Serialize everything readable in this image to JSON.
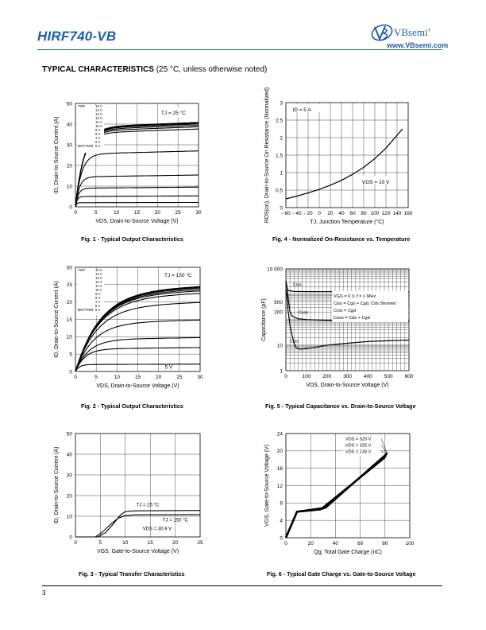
{
  "header": {
    "part_number": "HIRF740-VB",
    "brand": "VBsemi",
    "url": "www.VBsemi.com",
    "registered": "®",
    "accent_color": "#1f5fa8"
  },
  "section": {
    "title_bold": "TYPICAL CHARACTERISTICS",
    "title_rest": " (25 °C, unless otherwise noted)"
  },
  "footer": {
    "page_number": "3"
  },
  "chart_data": [
    {
      "id": "fig1",
      "type": "line",
      "caption": "Fig. 1 - Typical Output Characteristics",
      "xlabel": "VDS, Drain-to-Source Voltage (V)",
      "ylabel": "ID, Drain-to-Source Current (A)",
      "xlim": [
        0,
        30
      ],
      "ylim": [
        0,
        50
      ],
      "xticks": [
        0,
        5,
        10,
        15,
        20,
        25,
        30
      ],
      "yticks": [
        0,
        10,
        20,
        30,
        40,
        50
      ],
      "grid": true,
      "legend_title_top": "TOP",
      "legend_title_bottom": "BOTTOM",
      "legend": [
        "15 V",
        "14 V",
        "13 V",
        "12 V",
        "11 V",
        "10 V",
        "9 V",
        "8 V",
        "7 V",
        "6 V",
        "5 V"
      ],
      "annotation": "TJ = 25 °C",
      "series": [
        {
          "name": "15 V",
          "sat": 38.5,
          "knee": 4.8
        },
        {
          "name": "14 V",
          "sat": 38.2,
          "knee": 4.7
        },
        {
          "name": "13 V",
          "sat": 37.8,
          "knee": 4.6
        },
        {
          "name": "12 V",
          "sat": 37.2,
          "knee": 4.5
        },
        {
          "name": "11 V",
          "sat": 36.5,
          "knee": 4.4
        },
        {
          "name": "10 V",
          "sat": 35.5,
          "knee": 4.2
        },
        {
          "name": "9 V",
          "sat": 25.5,
          "knee": 3.2
        },
        {
          "name": "8 V",
          "sat": 14.5,
          "knee": 2.1
        },
        {
          "name": "7 V",
          "sat": 9.0,
          "knee": 1.5
        },
        {
          "name": "6 V",
          "sat": 5.0,
          "knee": 0.9
        },
        {
          "name": "5 V",
          "sat": 2.0,
          "knee": 0.5
        }
      ]
    },
    {
      "id": "fig2",
      "type": "line",
      "caption": "Fig. 2 - Typical Output Characteristics",
      "xlabel": "VDS, Drain-to-Source Voltage (V)",
      "ylabel": "ID, Drain-to-Source Current (A)",
      "xlim": [
        0,
        30
      ],
      "ylim": [
        0,
        30
      ],
      "xticks": [
        0,
        5,
        10,
        15,
        20,
        25,
        30
      ],
      "yticks": [
        0,
        5,
        10,
        15,
        20,
        25,
        30
      ],
      "grid": true,
      "legend_title_top": "TOP",
      "legend_title_bottom": "BOTTOM",
      "legend": [
        "15 V",
        "14 V",
        "13 V",
        "12 V",
        "11 V",
        "10 V",
        "9 V",
        "8 V",
        "7 V",
        "6 V",
        "5 V"
      ],
      "annotation": "TJ = 150 °C",
      "curve_label": "5 V",
      "series": [
        {
          "name": "15 V",
          "sat": 23.2,
          "knee": 13
        },
        {
          "name": "14 V",
          "sat": 23.0,
          "knee": 13
        },
        {
          "name": "13 V",
          "sat": 22.8,
          "knee": 13
        },
        {
          "name": "12 V",
          "sat": 22.4,
          "knee": 12.8
        },
        {
          "name": "11 V",
          "sat": 22.0,
          "knee": 12.6
        },
        {
          "name": "10 V",
          "sat": 21.3,
          "knee": 12.4
        },
        {
          "name": "9 V",
          "sat": 18.8,
          "knee": 11.5
        },
        {
          "name": "8 V",
          "sat": 14.0,
          "knee": 9.5
        },
        {
          "name": "7 V",
          "sat": 9.2,
          "knee": 7.0
        },
        {
          "name": "6 V",
          "sat": 6.5,
          "knee": 5.0
        },
        {
          "name": "5 V",
          "sat": 2.0,
          "knee": 2.0
        }
      ]
    },
    {
      "id": "fig3",
      "type": "line",
      "caption": "Fig. 3 - Typical Transfer Characteristics",
      "xlabel": "VGS, Gate-to-Source Voltage (V)",
      "ylabel": "ID, Drain-to-Source Current (A)",
      "xlim": [
        0,
        25
      ],
      "ylim": [
        0,
        50
      ],
      "xticks": [
        0,
        5,
        10,
        15,
        20,
        25
      ],
      "yticks": [
        0,
        10,
        20,
        30,
        40,
        50
      ],
      "grid": true,
      "annotations": [
        "TJ = 25 °C",
        "TJ = 150 °C",
        "VDS = 30.9 V"
      ],
      "series": [
        {
          "name": "TJ = 25 °C",
          "x": [
            0,
            4.5,
            6.0,
            7.5,
            9.0,
            10.0,
            12.0,
            25.0
          ],
          "y": [
            0,
            0,
            2.0,
            6.0,
            10.5,
            12.3,
            12.6,
            12.8
          ]
        },
        {
          "name": "TJ = 150 °C",
          "x": [
            0,
            4.0,
            5.5,
            7.0,
            8.5,
            10.0,
            12.0,
            25.0
          ],
          "y": [
            0,
            0,
            2.5,
            6.0,
            9.0,
            10.3,
            10.7,
            10.8
          ]
        }
      ]
    },
    {
      "id": "fig4",
      "type": "line",
      "caption": "Fig. 4 - Normalized On-Resistance vs. Temperature",
      "xlabel": "TJ, Junction Temperature (°C)",
      "ylabel": "RDS(on), Drain-to-Source On Resistance (Normalized)",
      "xlim": [
        -60,
        160
      ],
      "ylim": [
        0,
        3
      ],
      "xticks": [
        -60,
        -40,
        -20,
        0,
        20,
        40,
        60,
        80,
        100,
        120,
        140,
        160
      ],
      "xtick_labels": [
        "- 60",
        "- 40",
        "- 20",
        "0",
        "20",
        "40",
        "60",
        "80",
        "100",
        "120",
        "140",
        "160"
      ],
      "yticks": [
        0,
        0.5,
        1,
        1.5,
        2,
        2.5,
        3
      ],
      "ytick_labels": [
        "0",
        "0.5",
        "1",
        "1.5",
        "2",
        "2.5",
        "3"
      ],
      "grid": true,
      "annotations": [
        "ID = 5 A",
        "VGS = 10 V"
      ],
      "series": [
        {
          "name": "RDS(on)",
          "x": [
            -60,
            -40,
            -20,
            0,
            20,
            40,
            60,
            80,
            100,
            120,
            150
          ],
          "y": [
            0.25,
            0.33,
            0.42,
            0.52,
            0.64,
            0.78,
            0.95,
            1.15,
            1.4,
            1.7,
            2.25
          ]
        }
      ]
    },
    {
      "id": "fig5",
      "type": "line",
      "caption": "Fig. 5 - Typical Capacitance vs. Drain-to-Source Voltage",
      "xlabel": "VDS, Drain-to-Source Voltage (V)",
      "ylabel": "Capacitance (pF)",
      "xlim": [
        0,
        600
      ],
      "ylim": [
        1,
        10000
      ],
      "yscale": "log",
      "xticks": [
        0,
        100,
        200,
        300,
        400,
        500,
        600
      ],
      "yticks": [
        1,
        10,
        200,
        500,
        10000
      ],
      "ytick_labels": [
        "1",
        "10",
        "200",
        "500",
        "10 000"
      ],
      "grid": true,
      "legend": [
        "VGS = 0 V, f = 1 MHz",
        "Ciss = Cgs + Cgd, Cds Shorted",
        "Crss = Cgd",
        "Coss = Cds + Cgd"
      ],
      "curve_labels": [
        "Ciss",
        "Coss",
        "Crss"
      ],
      "series": [
        {
          "name": "Ciss",
          "x": [
            0,
            5,
            10,
            20,
            40,
            60,
            100,
            200,
            300,
            400,
            500,
            600
          ],
          "y": [
            2500,
            1800,
            1450,
            1350,
            1300,
            1290,
            1280,
            1270,
            1265,
            1260,
            1258,
            1255
          ]
        },
        {
          "name": "Coss",
          "x": [
            0,
            5,
            10,
            15,
            20,
            30,
            45,
            60,
            100,
            200,
            300,
            400,
            500,
            600
          ],
          "y": [
            3500,
            2000,
            900,
            400,
            210,
            140,
            120,
            110,
            102,
            96,
            92,
            90,
            88,
            86
          ]
        },
        {
          "name": "Crss",
          "x": [
            0,
            5,
            10,
            20,
            30,
            40,
            50,
            70,
            100,
            150,
            200,
            300,
            400,
            500,
            600
          ],
          "y": [
            1600,
            800,
            250,
            60,
            25,
            12,
            8,
            7,
            7.5,
            8.5,
            10,
            12,
            14,
            15,
            16
          ]
        }
      ]
    },
    {
      "id": "fig6",
      "type": "line",
      "caption": "Fig. 6 - Typical Gate Charge vs. Gate-to-Source Voltage",
      "xlabel": "Qg, Total Gate Charge (nC)",
      "ylabel": "VGS, Gate-to-Source Voltage (V)",
      "xlim": [
        0,
        100
      ],
      "ylim": [
        0,
        24
      ],
      "xticks": [
        0,
        20,
        40,
        60,
        80,
        100
      ],
      "yticks": [
        0,
        4,
        8,
        12,
        16,
        20,
        24
      ],
      "grid": true,
      "legend": [
        "VDS = 520 V",
        "VDS = 325 V",
        "VDS = 130 V"
      ],
      "series": [
        {
          "name": "VDS = 130 V",
          "x": [
            0,
            9,
            28,
            80
          ],
          "y": [
            0,
            6.0,
            6.5,
            18.5
          ]
        },
        {
          "name": "VDS = 325 V",
          "x": [
            0,
            9,
            30,
            81
          ],
          "y": [
            0,
            6.0,
            6.7,
            19.0
          ]
        },
        {
          "name": "VDS = 520 V",
          "x": [
            0,
            9,
            32,
            82
          ],
          "y": [
            0,
            6.0,
            6.9,
            19.5
          ]
        }
      ]
    }
  ]
}
